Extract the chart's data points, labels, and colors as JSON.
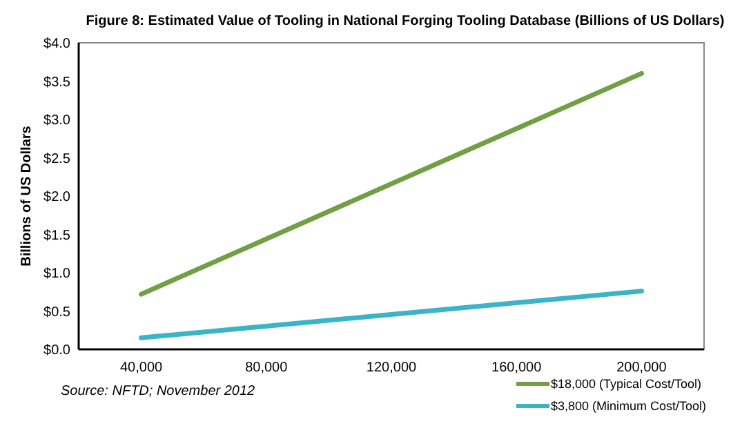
{
  "chart_data": {
    "type": "line",
    "title": "Figure 8: Estimated Value of Tooling in National Forging Tooling Database (Billions of US Dollars)",
    "ylabel": "Billions of US Dollars",
    "x": [
      40000,
      200000
    ],
    "series": [
      {
        "name": "$18,000 (Typical Cost/Tool)",
        "color": "#70a043",
        "values": [
          0.72,
          3.6
        ]
      },
      {
        "name": "$3,800 (Minimum Cost/Tool)",
        "color": "#3cb4c8",
        "values": [
          0.15,
          0.76
        ]
      }
    ],
    "xlim": [
      20000,
      220000
    ],
    "xticks": [
      {
        "value": 40000,
        "label": "40,000"
      },
      {
        "value": 80000,
        "label": "80,000"
      },
      {
        "value": 120000,
        "label": "120,000"
      },
      {
        "value": 160000,
        "label": "160,000"
      },
      {
        "value": 200000,
        "label": "200,000"
      }
    ],
    "ylim": [
      0,
      4
    ],
    "yticks": [
      {
        "value": 0,
        "label": "$0.0"
      },
      {
        "value": 0.5,
        "label": "$0.5"
      },
      {
        "value": 1,
        "label": "$1.0"
      },
      {
        "value": 1.5,
        "label": "$1.5"
      },
      {
        "value": 2,
        "label": "$2.0"
      },
      {
        "value": 2.5,
        "label": "$2.5"
      },
      {
        "value": 3,
        "label": "$3.0"
      },
      {
        "value": 3.5,
        "label": "$3.5"
      },
      {
        "value": 4,
        "label": "$4.0"
      }
    ],
    "grid": false,
    "legend": "bottom right",
    "marker": "none",
    "line_style": "solid",
    "annotations": [
      "Source: NFTD; November 2012"
    ]
  }
}
